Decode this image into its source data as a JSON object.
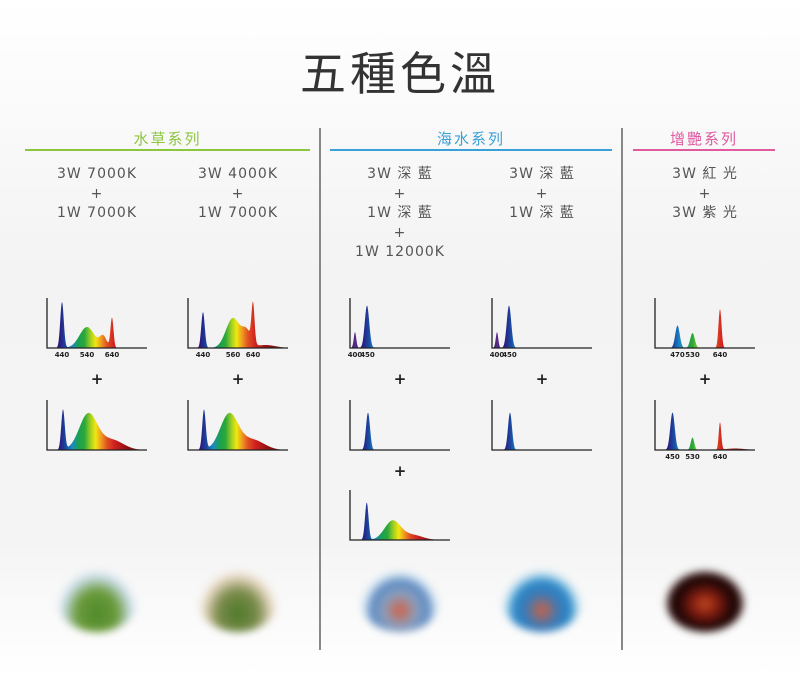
{
  "title": "五種色溫",
  "groups": [
    {
      "name": "水草系列",
      "color": "#8cc63f"
    },
    {
      "name": "海水系列",
      "color": "#3aa0d8"
    },
    {
      "name": "增艷系列",
      "color": "#e05aa0"
    }
  ],
  "plus": "+",
  "columns": [
    {
      "lines": [
        "3W 7000K",
        "+",
        "1W 7000K"
      ],
      "charts": [
        {
          "ticks": [
            440,
            540,
            640
          ],
          "peaks": [
            [
              440,
              0.92,
              7
            ],
            [
              540,
              0.42,
              30
            ],
            [
              605,
              0.22,
              14
            ],
            [
              640,
              0.6,
              6
            ]
          ]
        },
        {
          "ticks": [],
          "peaks": [
            [
              444,
              0.8,
              7
            ],
            [
              545,
              0.72,
              36
            ],
            [
              640,
              0.2,
              45
            ]
          ]
        }
      ],
      "photo": "aquatic-plants"
    },
    {
      "lines": [
        "3W 4000K",
        "+",
        "1W 7000K"
      ],
      "charts": [
        {
          "ticks": [
            440,
            560,
            640
          ],
          "peaks": [
            [
              440,
              0.72,
              7
            ],
            [
              560,
              0.6,
              28
            ],
            [
              615,
              0.3,
              18
            ],
            [
              640,
              0.78,
              6
            ],
            [
              690,
              0.06,
              40
            ]
          ]
        },
        {
          "ticks": [],
          "peaks": [
            [
              444,
              0.8,
              7
            ],
            [
              545,
              0.72,
              36
            ],
            [
              640,
              0.2,
              45
            ]
          ]
        }
      ],
      "photo": "aquatic-plants-warm"
    },
    {
      "lines": [
        "3W 深 藍",
        "+",
        "1W 深 藍",
        "+",
        "1W 12000K"
      ],
      "charts": [
        {
          "ticks": [
            400,
            450
          ],
          "peaks": [
            [
              400,
              0.32,
              5
            ],
            [
              448,
              0.85,
              9
            ]
          ]
        },
        {
          "ticks": [],
          "peaks": [
            [
              452,
              0.75,
              8
            ]
          ]
        },
        {
          "ticks": [],
          "peaks": [
            [
              447,
              0.75,
              7
            ],
            [
              550,
              0.38,
              32
            ],
            [
              630,
              0.1,
              40
            ]
          ]
        }
      ],
      "photo": "marine-fish"
    },
    {
      "lines": [
        "3W 深 藍",
        "+",
        "1W 深 藍"
      ],
      "charts": [
        {
          "ticks": [
            400,
            450
          ],
          "peaks": [
            [
              400,
              0.32,
              5
            ],
            [
              448,
              0.85,
              9
            ]
          ]
        },
        {
          "ticks": [],
          "peaks": [
            [
              452,
              0.75,
              8
            ]
          ]
        }
      ],
      "photo": "marine-fish-blue"
    },
    {
      "lines": [
        "3W 紅 光",
        "+",
        "3W 紫 光"
      ],
      "charts": [
        {
          "ticks": [
            470,
            530,
            640
          ],
          "peaks": [
            [
              470,
              0.45,
              9
            ],
            [
              530,
              0.3,
              9
            ],
            [
              640,
              0.78,
              6
            ]
          ]
        },
        {
          "ticks": [
            450,
            530,
            640
          ],
          "peaks": [
            [
              450,
              0.75,
              9
            ],
            [
              530,
              0.25,
              7
            ],
            [
              640,
              0.55,
              5
            ],
            [
              700,
              0.03,
              40
            ]
          ]
        }
      ],
      "photo": "arowana-red"
    }
  ]
}
